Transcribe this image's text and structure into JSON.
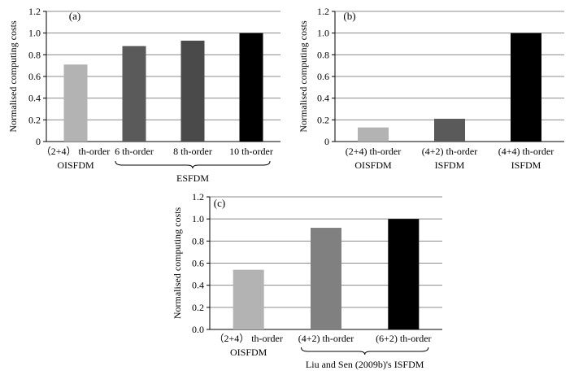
{
  "chart_data": [
    {
      "panel_label": "(a)",
      "type": "bar",
      "ylabel": "Normalised computing costs",
      "ylim": [
        0,
        1.2
      ],
      "yticks": [
        "0",
        "0.2",
        "0.4",
        "0.6",
        "0.8",
        "1.0",
        "1.2"
      ],
      "grid": true,
      "categories": [
        "（2+4） th-order",
        "6 th-order",
        "8 th-order",
        "10 th-order"
      ],
      "sublabels": [
        "OISFDM",
        "",
        "",
        ""
      ],
      "values": [
        0.71,
        0.88,
        0.93,
        1.0
      ],
      "colors": [
        "#b3b3b3",
        "#5a5a5a",
        "#4a4a4a",
        "#000000"
      ],
      "group": {
        "label": "ESFDM",
        "from": 1,
        "to": 3
      }
    },
    {
      "panel_label": "(b)",
      "type": "bar",
      "ylabel": "Normalised computing costs",
      "ylim": [
        0,
        1.2
      ],
      "yticks": [
        "0",
        "0.2",
        "0.4",
        "0.6",
        "0.8",
        "1.0",
        "1.2"
      ],
      "grid": true,
      "categories": [
        "(2+4) th-order",
        "(4+2) th-order",
        "(4+4) th-order"
      ],
      "sublabels": [
        "OISFDM",
        "ISFDM",
        "ISFDM"
      ],
      "values": [
        0.13,
        0.21,
        1.0
      ],
      "colors": [
        "#b3b3b3",
        "#5a5a5a",
        "#000000"
      ]
    },
    {
      "panel_label": "(c)",
      "type": "bar",
      "ylabel": "Normalised computing costs",
      "ylim": [
        0,
        1.2
      ],
      "yticks": [
        "0.0",
        "0.2",
        "0.4",
        "0.6",
        "0.8",
        "1.0",
        "1.2"
      ],
      "grid": true,
      "categories": [
        "（2+4） th-order",
        "(4+2) th-order",
        "(6+2) th-order"
      ],
      "sublabels": [
        "OISFDM",
        "",
        ""
      ],
      "values": [
        0.54,
        0.92,
        1.0
      ],
      "colors": [
        "#b3b3b3",
        "#808080",
        "#000000"
      ],
      "group": {
        "label": "Liu and Sen (2009b)'s ISFDM",
        "from": 1,
        "to": 2
      }
    }
  ]
}
